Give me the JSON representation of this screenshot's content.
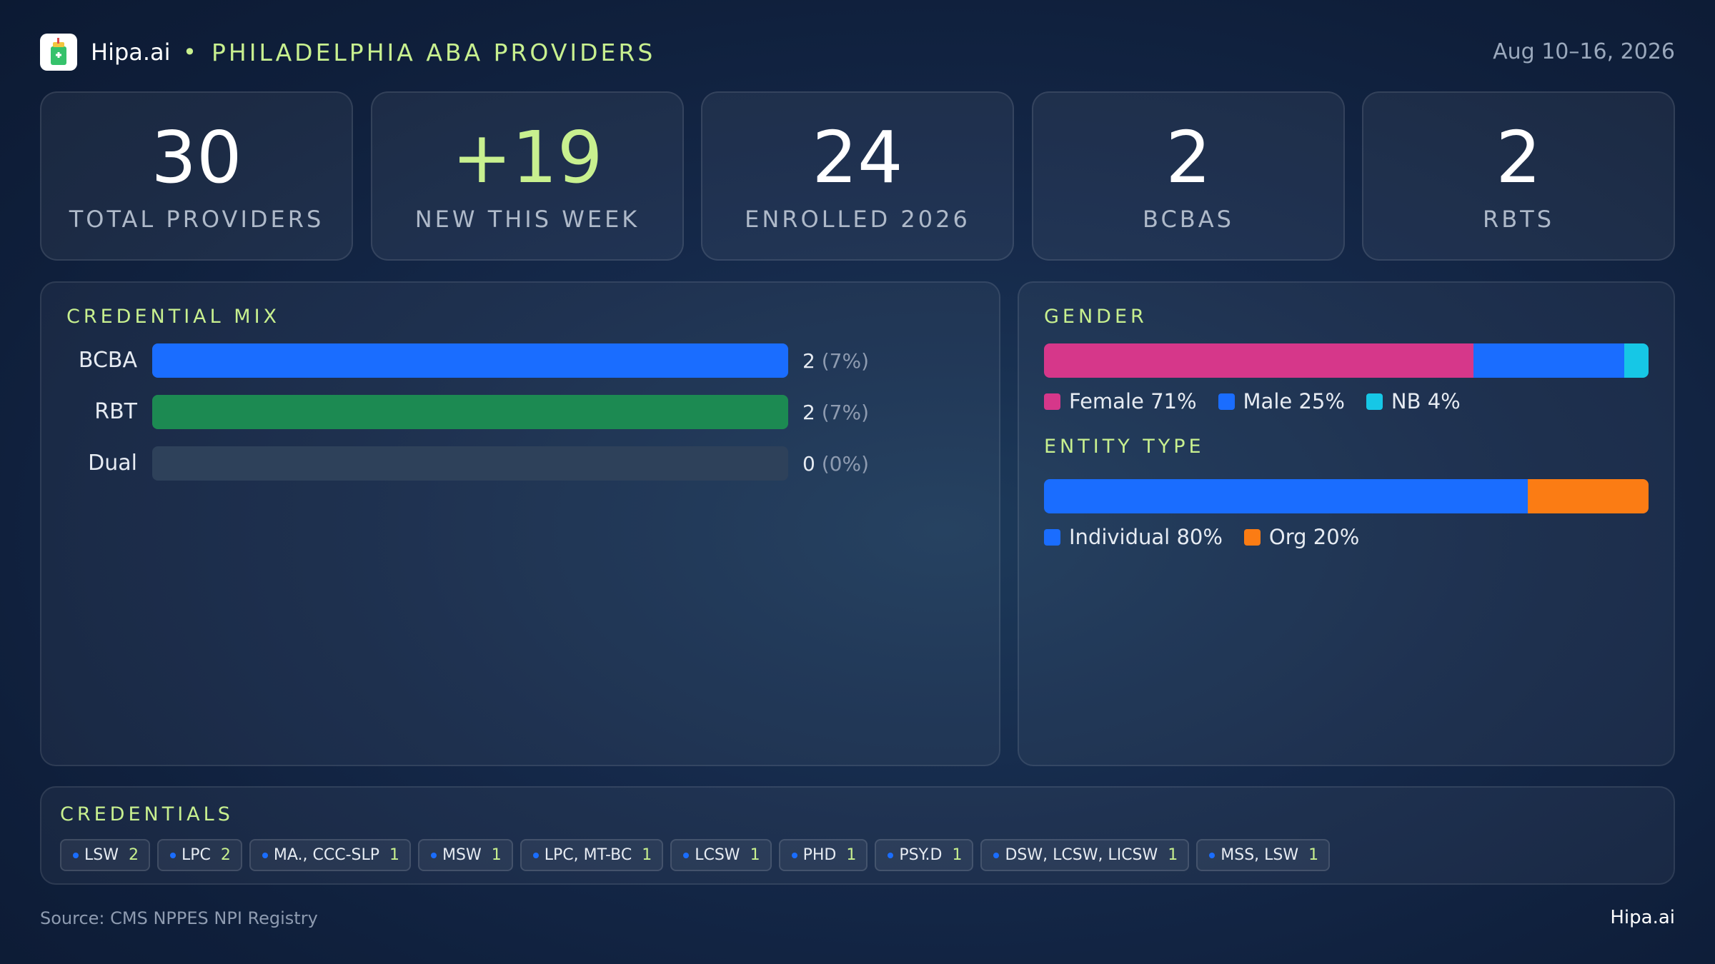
{
  "header": {
    "brand": "Hipa.ai",
    "separator": "•",
    "title": "PHILADELPHIA ABA PROVIDERS",
    "date_range": "Aug 10–16, 2026"
  },
  "stats": [
    {
      "value": "30",
      "label": "TOTAL PROVIDERS"
    },
    {
      "value": "+19",
      "label": "NEW THIS WEEK"
    },
    {
      "value": "24",
      "label": "ENROLLED 2026"
    },
    {
      "value": "2",
      "label": "BCBAS"
    },
    {
      "value": "2",
      "label": "RBTS"
    }
  ],
  "credential_mix": {
    "title": "CREDENTIAL MIX",
    "rows": [
      {
        "label": "BCBA",
        "count": "2",
        "pct": "(7%)",
        "fill": 1.0,
        "color": "#1a6dff"
      },
      {
        "label": "RBT",
        "count": "2",
        "pct": "(7%)",
        "fill": 1.0,
        "color": "#1c8a52"
      },
      {
        "label": "Dual",
        "count": "0",
        "pct": "(0%)",
        "fill": 0.0,
        "color": "#1a6dff"
      }
    ]
  },
  "gender": {
    "title": "GENDER",
    "segments": [
      {
        "label": "Female 71%",
        "share": 71,
        "color": "#d6378a"
      },
      {
        "label": "Male 25%",
        "share": 25,
        "color": "#1a6dff"
      },
      {
        "label": "NB 4%",
        "share": 4,
        "color": "#16c7e6"
      }
    ]
  },
  "entity_type": {
    "title": "ENTITY TYPE",
    "segments": [
      {
        "label": "Individual 80%",
        "share": 80,
        "color": "#1a6dff"
      },
      {
        "label": "Org 20%",
        "share": 20,
        "color": "#fb7c14"
      }
    ]
  },
  "credentials": {
    "title": "CREDENTIALS",
    "chips": [
      {
        "name": "LSW",
        "count": "2"
      },
      {
        "name": "LPC",
        "count": "2"
      },
      {
        "name": "MA., CCC-SLP",
        "count": "1"
      },
      {
        "name": "MSW",
        "count": "1"
      },
      {
        "name": "LPC, MT-BC",
        "count": "1"
      },
      {
        "name": "LCSW",
        "count": "1"
      },
      {
        "name": "PHD",
        "count": "1"
      },
      {
        "name": "PSY.D",
        "count": "1"
      },
      {
        "name": "DSW, LCSW, LICSW",
        "count": "1"
      },
      {
        "name": "MSS, LSW",
        "count": "1"
      }
    ]
  },
  "footer": {
    "source": "Source: CMS NPPES NPI Registry",
    "brand": "Hipa.ai"
  }
}
